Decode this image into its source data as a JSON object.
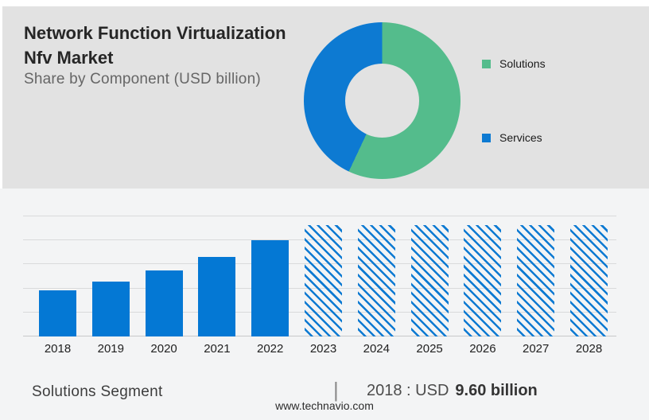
{
  "header": {
    "title": "Network Function Virtualization Nfv Market",
    "subtitle": "Share by Component (USD billion)"
  },
  "legend": [
    {
      "label": "Solutions",
      "color": "#54bc8c"
    },
    {
      "label": "Services",
      "color": "#0d7ad2"
    }
  ],
  "footer": {
    "segment_label": "Solutions Segment",
    "separator": "|",
    "value_prefix": "2018 : USD",
    "value_bold": "9.60 billion",
    "website": "www.technavio.com"
  },
  "colors": {
    "top_panel_bg": "#e2e2e2",
    "bottom_panel_bg": "#f3f4f5",
    "solutions_green": "#54bc8c",
    "services_blue": "#0d7ad2",
    "bar_blue": "#0478d4",
    "gridline": "#d9dadb"
  },
  "chart_data": [
    {
      "type": "pie",
      "subtype": "donut",
      "labels": [
        "Solutions",
        "Services"
      ],
      "values": [
        57,
        43
      ],
      "colors": [
        "#54bc8c",
        "#0d7ad2"
      ],
      "legend_position": "right",
      "start_angle_deg": 0,
      "direction": "clockwise"
    },
    {
      "type": "bar",
      "categories": [
        "2018",
        "2019",
        "2020",
        "2021",
        "2022",
        "2023",
        "2024",
        "2025",
        "2026",
        "2027",
        "2028"
      ],
      "values": [
        9.6,
        11.5,
        13.7,
        16.5,
        20.1,
        23.2,
        23.2,
        23.2,
        23.2,
        23.2,
        23.2
      ],
      "forecast": [
        false,
        false,
        false,
        false,
        false,
        true,
        true,
        true,
        true,
        true,
        true
      ],
      "bar_color": "#0478d4",
      "forecast_style": "diagonal-hatch",
      "title": "",
      "xlabel": "",
      "ylabel": "",
      "ylim": [
        0,
        25
      ],
      "gridline_step": 5,
      "grid": true,
      "legend_position": "none"
    }
  ]
}
